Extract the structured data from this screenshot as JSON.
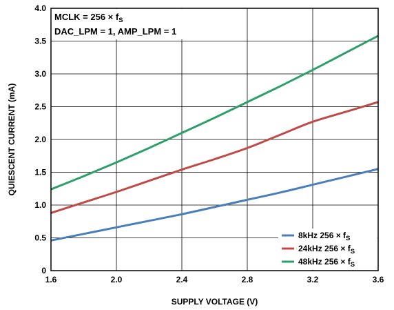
{
  "chart_data": {
    "type": "line",
    "xlabel": "SUPPLY VOLTAGE (V)",
    "ylabel": "QUIESCENT CURRENT (mA)",
    "xlim": [
      1.6,
      3.6
    ],
    "ylim": [
      0,
      4.0
    ],
    "xticks": [
      "1.6",
      "2.0",
      "2.4",
      "2.8",
      "3.2",
      "3.6"
    ],
    "yticks": [
      "0",
      "0.5",
      "1.0",
      "1.5",
      "2.0",
      "2.5",
      "3.0",
      "3.5",
      "4.0"
    ],
    "grid": true,
    "legend_position": "bottom-right",
    "annotations": [
      {
        "text": "MCLK = 256 × f",
        "sub": "S"
      },
      {
        "text": "DAC_LPM = 1, AMP_LPM = 1",
        "sub": ""
      }
    ],
    "series": [
      {
        "name": "8kHz 256 × f",
        "name_sub": "S",
        "color": "#4a7ebb",
        "x": [
          1.6,
          1.8,
          2.0,
          2.2,
          2.4,
          2.6,
          2.8,
          3.0,
          3.2,
          3.4,
          3.6
        ],
        "y": [
          0.46,
          0.56,
          0.66,
          0.76,
          0.86,
          0.97,
          1.08,
          1.19,
          1.31,
          1.43,
          1.55
        ]
      },
      {
        "name": "24kHz 256 × f",
        "name_sub": "S",
        "color": "#be4b48",
        "x": [
          1.6,
          1.8,
          2.0,
          2.2,
          2.4,
          2.6,
          2.8,
          3.0,
          3.2,
          3.4,
          3.6
        ],
        "y": [
          0.88,
          1.04,
          1.2,
          1.37,
          1.54,
          1.7,
          1.87,
          2.07,
          2.27,
          2.42,
          2.57
        ]
      },
      {
        "name": "48kHz 256 × f",
        "name_sub": "S",
        "color": "#2e9e6b",
        "x": [
          1.6,
          1.8,
          2.0,
          2.2,
          2.4,
          2.6,
          2.8,
          3.0,
          3.2,
          3.4,
          3.6
        ],
        "y": [
          1.24,
          1.44,
          1.65,
          1.87,
          2.1,
          2.33,
          2.57,
          2.81,
          3.06,
          3.32,
          3.58
        ]
      }
    ]
  }
}
